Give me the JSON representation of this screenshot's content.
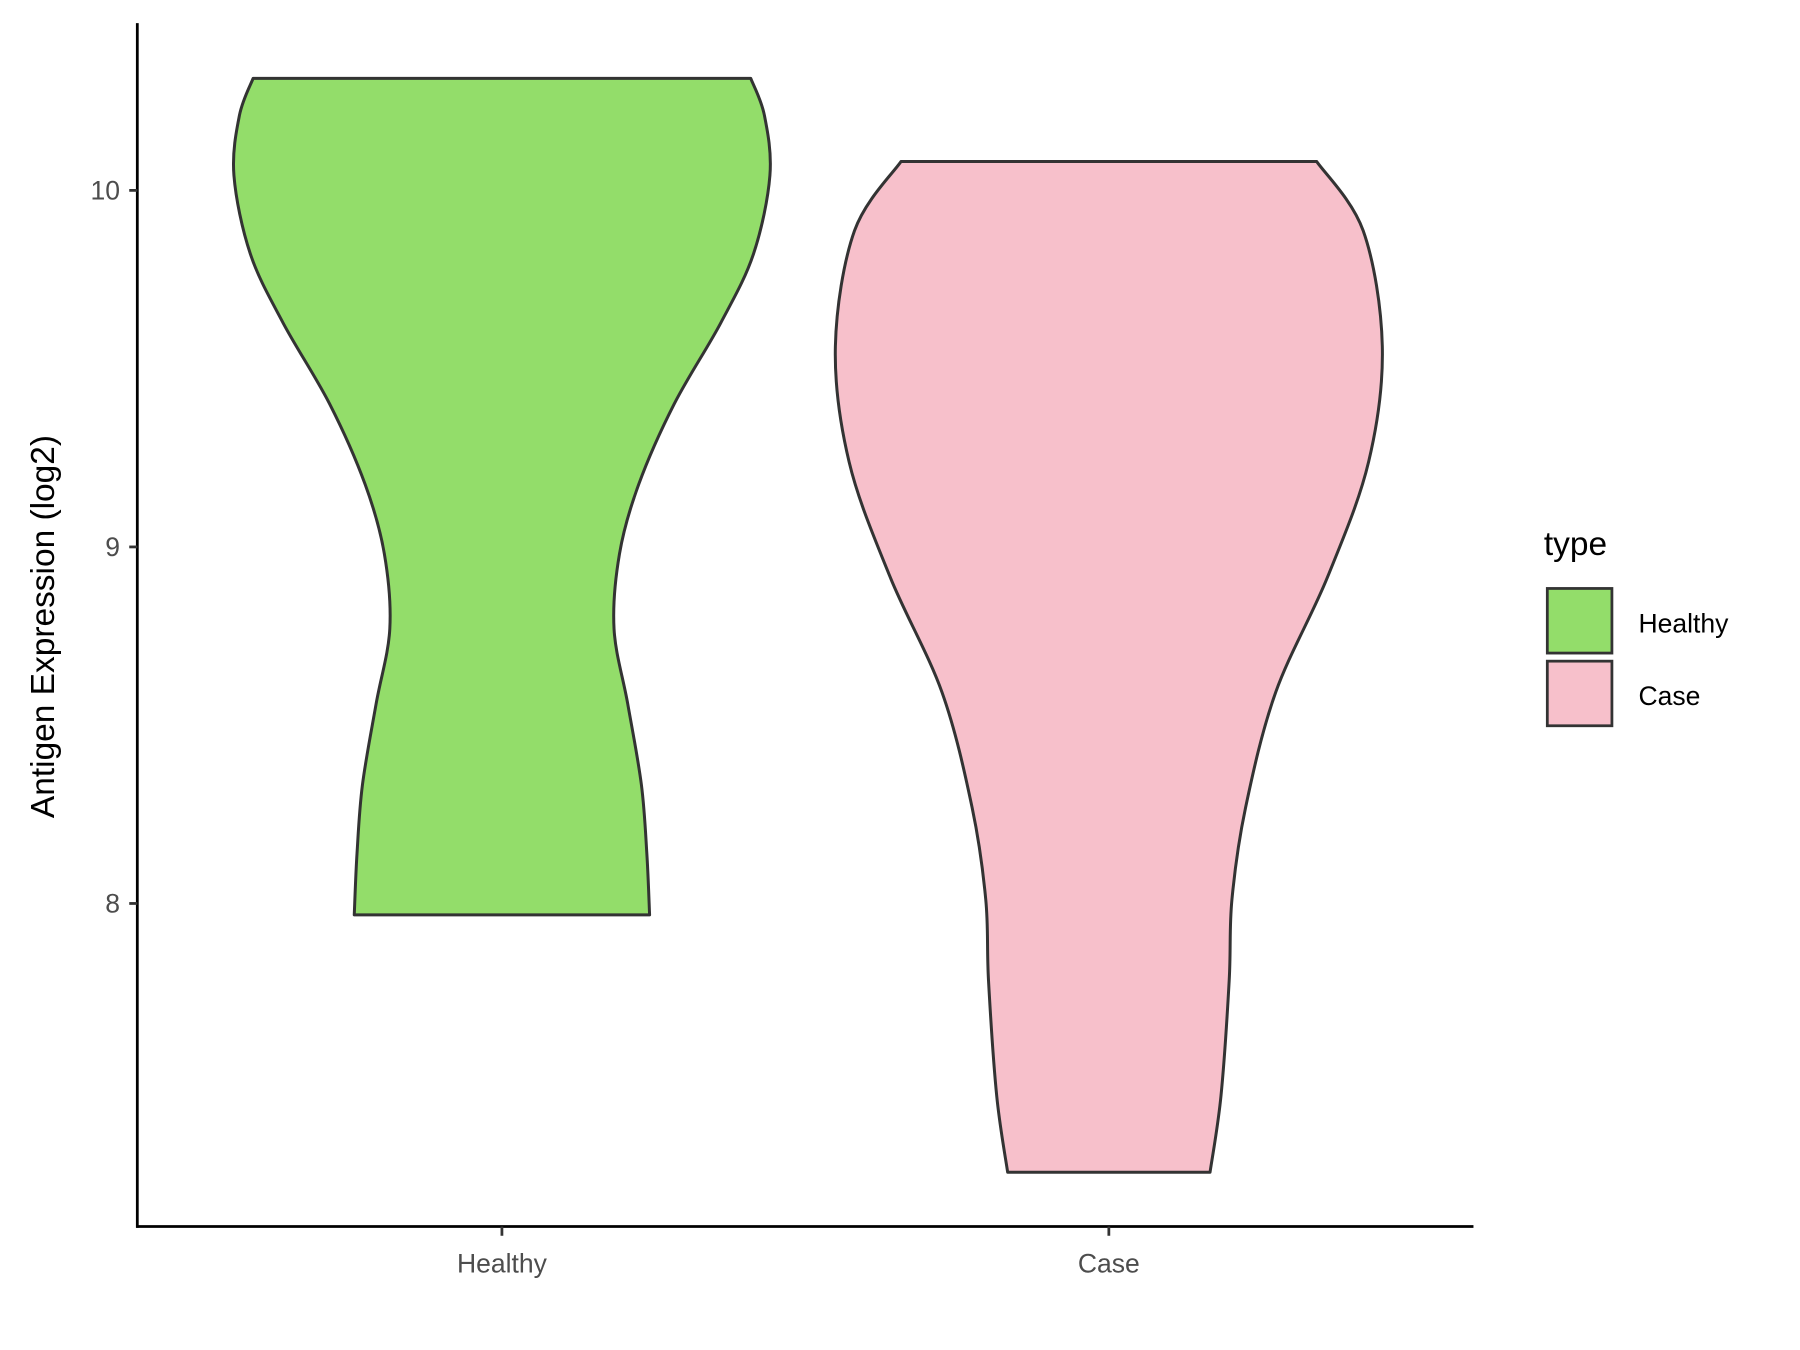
{
  "chart_data": {
    "type": "violin",
    "title": "",
    "xlabel": "",
    "ylabel": "Antigen Expression (log2)",
    "categories": [
      "Healthy",
      "Case"
    ],
    "yticks": [
      8,
      9,
      10
    ],
    "ytick_labels": [
      "8",
      "9",
      "10"
    ],
    "ylim": [
      7.09,
      10.47
    ],
    "grid": false,
    "legend": {
      "title": "type",
      "position": "right",
      "entries": [
        "Healthy",
        "Case"
      ]
    },
    "series": [
      {
        "name": "Healthy",
        "color": "#93DD6A",
        "min": 7.968,
        "max": 10.314,
        "profile": [
          [
            10.314,
            0.91
          ],
          [
            10.21,
            0.96
          ],
          [
            10.042,
            0.98
          ],
          [
            9.822,
            0.92
          ],
          [
            9.628,
            0.8
          ],
          [
            9.401,
            0.63
          ],
          [
            9.175,
            0.5
          ],
          [
            8.981,
            0.43
          ],
          [
            8.77,
            0.41
          ],
          [
            8.56,
            0.46
          ],
          [
            8.333,
            0.51
          ],
          [
            8.139,
            0.53
          ],
          [
            7.968,
            0.54
          ]
        ]
      },
      {
        "name": "Case",
        "color": "#F7C0CB",
        "min": 7.246,
        "max": 10.081,
        "profile": [
          [
            10.081,
            0.76
          ],
          [
            9.887,
            0.93
          ],
          [
            9.563,
            1.0
          ],
          [
            9.239,
            0.95
          ],
          [
            8.916,
            0.8
          ],
          [
            8.592,
            0.61
          ],
          [
            8.269,
            0.5
          ],
          [
            8.01,
            0.45
          ],
          [
            7.783,
            0.44
          ],
          [
            7.46,
            0.41
          ],
          [
            7.246,
            0.37
          ]
        ]
      }
    ]
  }
}
